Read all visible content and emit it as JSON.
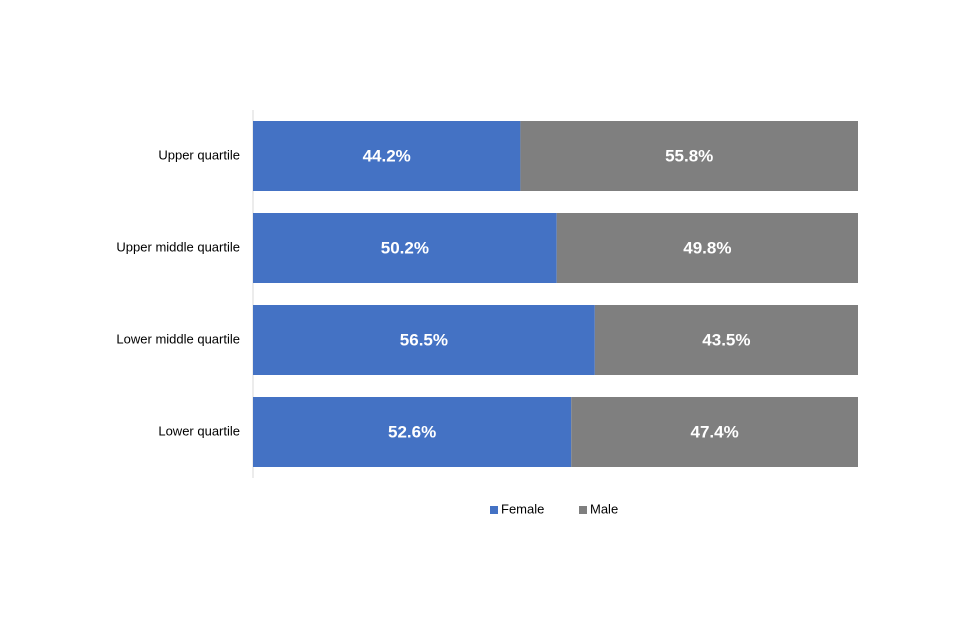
{
  "chart_data": {
    "type": "bar",
    "orientation": "horizontal",
    "stacked": true,
    "categories": [
      "Upper quartile",
      "Upper middle quartile",
      "Lower middle quartile",
      "Lower quartile"
    ],
    "series": [
      {
        "name": "Female",
        "color": "#4472c4",
        "values": [
          44.2,
          50.2,
          56.5,
          52.6
        ],
        "value_labels": [
          "44.2%",
          "50.2%",
          "56.5%",
          "52.6%"
        ]
      },
      {
        "name": "Male",
        "color": "#7f7f7f",
        "values": [
          55.8,
          49.8,
          43.5,
          47.4
        ],
        "value_labels": [
          "55.8%",
          "49.8%",
          "43.5%",
          "47.4%"
        ]
      }
    ],
    "xlim": [
      0,
      100
    ],
    "legend": "bottom"
  }
}
